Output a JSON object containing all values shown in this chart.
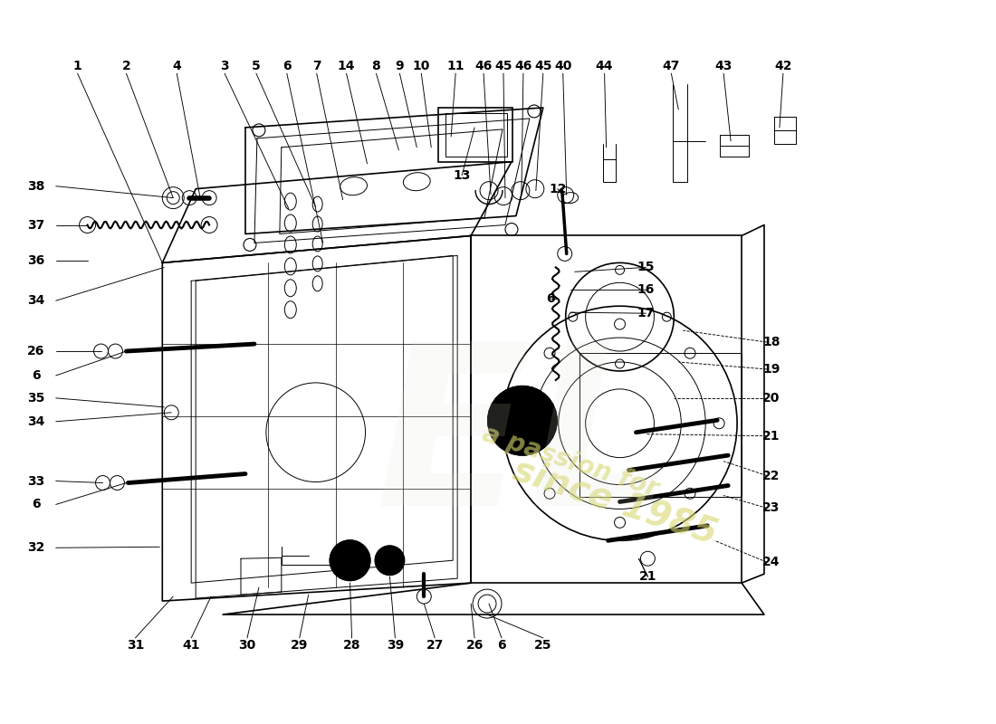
{
  "bg_color": "#ffffff",
  "line_color": "#000000",
  "lw_main": 1.2,
  "lw_thin": 0.7,
  "lw_leader": 0.7,
  "fs_label": 10,
  "watermark1": "a passion for",
  "watermark2": "since 1985",
  "top_labels": [
    [
      "1",
      84,
      72
    ],
    [
      "2",
      138,
      72
    ],
    [
      "4",
      194,
      72
    ],
    [
      "3",
      247,
      72
    ],
    [
      "5",
      282,
      72
    ],
    [
      "6",
      316,
      72
    ],
    [
      "7",
      349,
      72
    ],
    [
      "14",
      382,
      72
    ],
    [
      "8",
      415,
      72
    ],
    [
      "9",
      441,
      72
    ],
    [
      "10",
      465,
      72
    ],
    [
      "11",
      503,
      72
    ],
    [
      "46",
      534,
      72
    ],
    [
      "45",
      556,
      72
    ],
    [
      "46",
      578,
      72
    ],
    [
      "45",
      600,
      72
    ],
    [
      "40",
      622,
      72
    ],
    [
      "44",
      668,
      72
    ],
    [
      "47",
      742,
      72
    ],
    [
      "43",
      800,
      72
    ],
    [
      "42",
      866,
      72
    ]
  ],
  "left_labels": [
    [
      "38",
      38,
      205
    ],
    [
      "37",
      38,
      248
    ],
    [
      "36",
      38,
      288
    ],
    [
      "34",
      38,
      332
    ],
    [
      "26",
      38,
      388
    ],
    [
      "6",
      38,
      415
    ],
    [
      "35",
      38,
      440
    ],
    [
      "34",
      38,
      466
    ],
    [
      "33",
      38,
      532
    ],
    [
      "6",
      38,
      558
    ],
    [
      "32",
      38,
      606
    ]
  ],
  "right_labels": [
    [
      "13",
      510,
      193
    ],
    [
      "12",
      616,
      208
    ],
    [
      "15",
      714,
      295
    ],
    [
      "16",
      714,
      320
    ],
    [
      "17",
      714,
      346
    ],
    [
      "6",
      608,
      330
    ],
    [
      "18",
      853,
      378
    ],
    [
      "19",
      853,
      408
    ],
    [
      "20",
      853,
      440
    ],
    [
      "21",
      853,
      482
    ],
    [
      "22",
      853,
      526
    ],
    [
      "23",
      853,
      562
    ],
    [
      "24",
      853,
      622
    ],
    [
      "21",
      716,
      638
    ]
  ],
  "bottom_labels": [
    [
      "31",
      148,
      714
    ],
    [
      "41",
      210,
      714
    ],
    [
      "30",
      272,
      714
    ],
    [
      "29",
      330,
      714
    ],
    [
      "28",
      388,
      714
    ],
    [
      "39",
      436,
      714
    ],
    [
      "27",
      480,
      714
    ],
    [
      "26",
      524,
      714
    ],
    [
      "6",
      554,
      714
    ],
    [
      "25",
      600,
      714
    ]
  ]
}
